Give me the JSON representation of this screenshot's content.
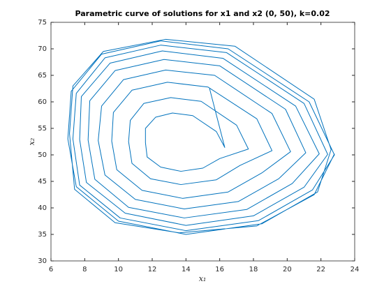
{
  "chart_data": {
    "type": "line",
    "title": "Parametric curve of solutions for x1 and x2 (0, 50), k=0.02",
    "xlabel": "x₁",
    "ylabel": "x₂",
    "xlim": [
      6,
      24
    ],
    "xticks": [
      6,
      8,
      10,
      12,
      14,
      16,
      18,
      20,
      22,
      24
    ],
    "ylim": [
      30,
      75
    ],
    "yticks": [
      30,
      35,
      40,
      45,
      50,
      55,
      60,
      65,
      70,
      75
    ],
    "grid": false,
    "series": [
      {
        "color": "#0072bd",
        "x": [
          15.4,
          16.3,
          15.8,
          14.4,
          13.2,
          12.2,
          11.6,
          11.6,
          11.7,
          12.5,
          13.7,
          15,
          16,
          17.7,
          17,
          14.9,
          13.1,
          11.5,
          10.7,
          10.6,
          10.8,
          11.9,
          13.7,
          15.8,
          17.2,
          19.1,
          18.2,
          15.3,
          12.9,
          10.8,
          9.7,
          9.6,
          9.9,
          11.4,
          13.8,
          16.5,
          18.5,
          20.2,
          19.1,
          15.7,
          12.8,
          10.3,
          9,
          8.8,
          9.2,
          11,
          13.9,
          17.1,
          19.5,
          21.1,
          19.9,
          16,
          12.7,
          9.8,
          8.3,
          8.2,
          8.6,
          10.6,
          13.9,
          17.6,
          20.3,
          21.9,
          20.5,
          16.2,
          12.6,
          9.5,
          7.8,
          7.7,
          8.1,
          10.4,
          14,
          18,
          21,
          22.4,
          21,
          16.4,
          12.5,
          9.2,
          7.5,
          7.3,
          7.7,
          10.1,
          14,
          18.3,
          21.5,
          22.8,
          21.3,
          16.5,
          12.5,
          9,
          7.2,
          7,
          7.5,
          10,
          14,
          18.5,
          21.8,
          22.6,
          21.6,
          16.9,
          12.8,
          9.1,
          7.3,
          7.1,
          7.4,
          9.8,
          13.6,
          18.2,
          21.6,
          22.8
        ],
        "y": [
          62.5,
          51.4,
          54.4,
          57.4,
          57.9,
          57.1,
          55,
          52.3,
          49.6,
          47.7,
          46.9,
          47.5,
          49.3,
          51.1,
          55.6,
          60.1,
          60.8,
          59.7,
          56.5,
          52.5,
          48.4,
          45.5,
          44.4,
          45.3,
          48,
          50.8,
          56.8,
          62.8,
          63.7,
          62.2,
          58,
          52.6,
          47.2,
          43.3,
          41.8,
          43,
          46.6,
          50.6,
          57.8,
          65,
          66,
          64.2,
          59.2,
          52.7,
          46.2,
          41.6,
          39.8,
          41.2,
          45.5,
          50.4,
          58.6,
          66.8,
          68,
          65.9,
          60.2,
          52.8,
          45.4,
          40.1,
          38.1,
          39.7,
          44.6,
          50.2,
          59.2,
          68.2,
          69.6,
          67.3,
          61,
          52.9,
          44.8,
          39,
          36.7,
          38.5,
          43.9,
          50.1,
          59.7,
          69.3,
          70.7,
          68.3,
          61.6,
          53,
          44.3,
          38.1,
          35.7,
          37.6,
          43.4,
          50,
          60,
          70,
          71.5,
          69,
          62,
          53,
          44,
          37.5,
          35,
          37,
          43,
          51,
          60.5,
          70.5,
          71.8,
          69.5,
          63,
          54,
          43.5,
          37.2,
          35.3,
          36.6,
          42.5,
          50.2
        ]
      }
    ]
  }
}
